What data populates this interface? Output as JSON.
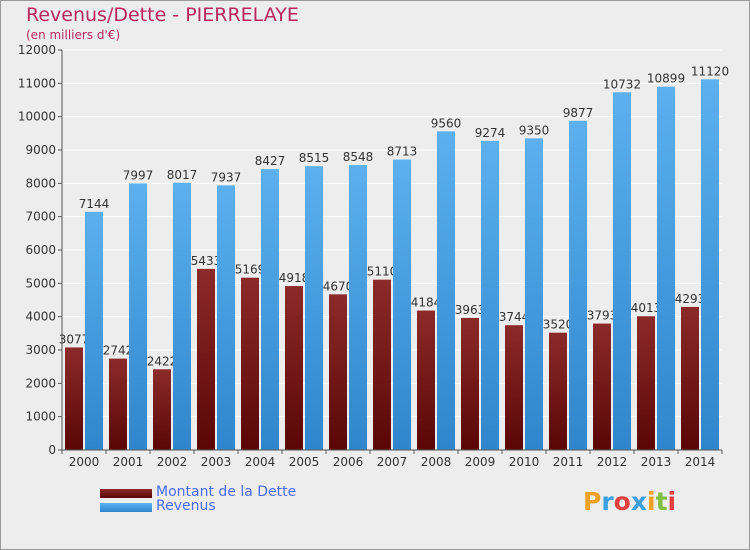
{
  "chart_data": {
    "type": "bar",
    "title": "Revenus/Dette - PIERRELAYE",
    "subtitle": "(en milliers d'€)",
    "categories": [
      "2000",
      "2001",
      "2002",
      "2003",
      "2004",
      "2005",
      "2006",
      "2007",
      "2008",
      "2009",
      "2010",
      "2011",
      "2012",
      "2013",
      "2014"
    ],
    "series": [
      {
        "name": "Montant de la Dette",
        "values": [
          3077,
          2742,
          2422,
          5433,
          5169,
          4918,
          4670,
          5110,
          4184,
          3963,
          3744,
          3520,
          3793,
          4013,
          4293
        ],
        "labels": [
          "3077",
          "2742",
          "2422",
          "5433",
          "5169",
          "4918",
          "4670",
          "5110",
          "4184",
          "3963",
          "3744",
          "3520",
          "3793",
          "4013",
          "4293"
        ],
        "color": "#7a1a1a"
      },
      {
        "name": "Revenus",
        "values": [
          7144,
          7997,
          8017,
          7937,
          8427,
          8515,
          8548,
          8713,
          9560,
          9274,
          9350,
          9877,
          10732,
          10899,
          11120
        ],
        "labels": [
          "7144",
          "7997",
          "8017",
          "7937",
          "8427",
          "8515",
          "8548",
          "8713",
          "9560",
          "9274",
          "9350",
          "9877",
          "10732",
          "10899",
          "11120"
        ],
        "color": "#4aa0e0"
      }
    ],
    "ylim": [
      0,
      12000
    ],
    "yticks": [
      "0",
      "1000",
      "2000",
      "3000",
      "4000",
      "5000",
      "6000",
      "7000",
      "8000",
      "9000",
      "10000",
      "11000",
      "12000"
    ],
    "grid": true,
    "legend_position": "bottom-left"
  },
  "logo": {
    "letters": [
      "P",
      "r",
      "o",
      "x",
      "i",
      "t",
      "i"
    ],
    "colors": [
      "#f0a020",
      "#3aa0e0",
      "#e04040",
      "#3aa0e0",
      "#f0a020",
      "#80c040",
      "#e04040"
    ]
  }
}
